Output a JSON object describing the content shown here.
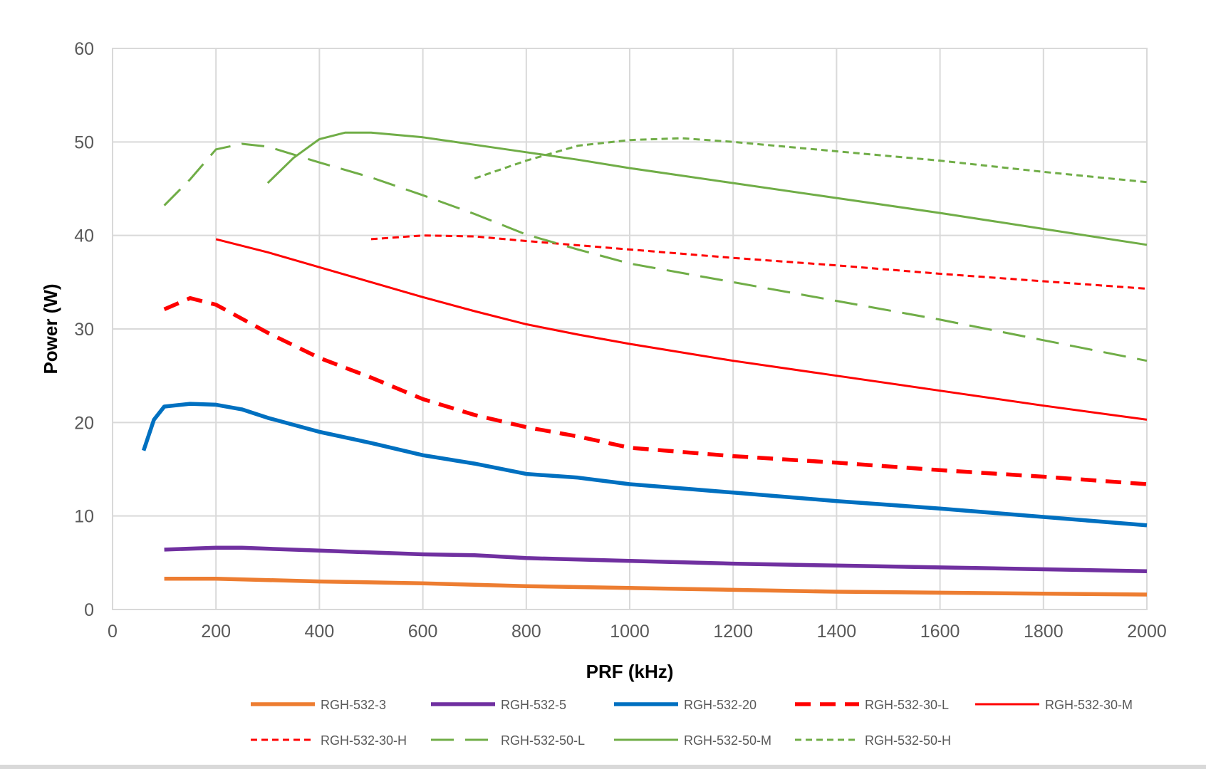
{
  "chart_data": {
    "type": "line",
    "title": "",
    "xlabel": "PRF (kHz)",
    "ylabel": "Power (W)",
    "xlim": [
      0,
      2000
    ],
    "ylim": [
      0,
      60
    ],
    "x_ticks": [
      0,
      200,
      400,
      600,
      800,
      1000,
      1200,
      1400,
      1600,
      1800,
      2000
    ],
    "y_ticks": [
      0,
      10,
      20,
      30,
      40,
      50,
      60
    ],
    "grid": true,
    "legend_position": "bottom",
    "series": [
      {
        "name": "RGH-532-3",
        "color": "#ED7D31",
        "style": "solid",
        "weight": "bold",
        "points": [
          [
            100,
            3.3
          ],
          [
            200,
            3.3
          ],
          [
            400,
            3.0
          ],
          [
            600,
            2.8
          ],
          [
            800,
            2.5
          ],
          [
            1000,
            2.3
          ],
          [
            1200,
            2.1
          ],
          [
            1400,
            1.9
          ],
          [
            1600,
            1.8
          ],
          [
            1800,
            1.7
          ],
          [
            2000,
            1.6
          ]
        ]
      },
      {
        "name": "RGH-532-5",
        "color": "#7030A0",
        "style": "solid",
        "weight": "bold",
        "points": [
          [
            100,
            6.4
          ],
          [
            200,
            6.6
          ],
          [
            250,
            6.6
          ],
          [
            400,
            6.3
          ],
          [
            600,
            5.9
          ],
          [
            700,
            5.8
          ],
          [
            800,
            5.5
          ],
          [
            1000,
            5.2
          ],
          [
            1200,
            4.9
          ],
          [
            1400,
            4.7
          ],
          [
            1600,
            4.5
          ],
          [
            1800,
            4.3
          ],
          [
            2000,
            4.1
          ]
        ]
      },
      {
        "name": "RGH-532-20",
        "color": "#0070C0",
        "style": "solid",
        "weight": "bold",
        "points": [
          [
            60,
            17
          ],
          [
            80,
            20.3
          ],
          [
            100,
            21.7
          ],
          [
            150,
            22.0
          ],
          [
            200,
            21.9
          ],
          [
            250,
            21.4
          ],
          [
            300,
            20.5
          ],
          [
            400,
            19.0
          ],
          [
            500,
            17.8
          ],
          [
            600,
            16.5
          ],
          [
            700,
            15.6
          ],
          [
            800,
            14.5
          ],
          [
            900,
            14.1
          ],
          [
            1000,
            13.4
          ],
          [
            1200,
            12.5
          ],
          [
            1400,
            11.6
          ],
          [
            1600,
            10.8
          ],
          [
            1800,
            9.9
          ],
          [
            2000,
            9.0
          ]
        ]
      },
      {
        "name": "RGH-532-30-L",
        "color": "#FF0000",
        "style": "dash",
        "weight": "bold",
        "points": [
          [
            100,
            32.1
          ],
          [
            150,
            33.3
          ],
          [
            200,
            32.6
          ],
          [
            300,
            29.6
          ],
          [
            400,
            26.9
          ],
          [
            500,
            24.8
          ],
          [
            600,
            22.5
          ],
          [
            700,
            20.8
          ],
          [
            800,
            19.5
          ],
          [
            900,
            18.5
          ],
          [
            1000,
            17.3
          ],
          [
            1200,
            16.4
          ],
          [
            1400,
            15.7
          ],
          [
            1600,
            14.9
          ],
          [
            1800,
            14.2
          ],
          [
            2000,
            13.4
          ]
        ]
      },
      {
        "name": "RGH-532-30-M",
        "color": "#FF0000",
        "style": "solid",
        "weight": "normal",
        "points": [
          [
            200,
            39.6
          ],
          [
            300,
            38.2
          ],
          [
            400,
            36.6
          ],
          [
            500,
            35.0
          ],
          [
            600,
            33.4
          ],
          [
            700,
            31.9
          ],
          [
            800,
            30.5
          ],
          [
            900,
            29.4
          ],
          [
            1000,
            28.4
          ],
          [
            1200,
            26.6
          ],
          [
            1400,
            25.0
          ],
          [
            1600,
            23.4
          ],
          [
            1800,
            21.8
          ],
          [
            2000,
            20.3
          ]
        ]
      },
      {
        "name": "RGH-532-30-H",
        "color": "#FF0000",
        "style": "dot",
        "weight": "normal",
        "points": [
          [
            500,
            39.6
          ],
          [
            600,
            40.0
          ],
          [
            700,
            39.9
          ],
          [
            800,
            39.4
          ],
          [
            1000,
            38.5
          ],
          [
            1200,
            37.6
          ],
          [
            1400,
            36.8
          ],
          [
            1600,
            35.9
          ],
          [
            1800,
            35.1
          ],
          [
            2000,
            34.3
          ]
        ]
      },
      {
        "name": "RGH-532-50-L",
        "color": "#70AD47",
        "style": "longdash",
        "weight": "normal",
        "points": [
          [
            100,
            43.2
          ],
          [
            150,
            46.0
          ],
          [
            200,
            49.2
          ],
          [
            250,
            49.8
          ],
          [
            300,
            49.5
          ],
          [
            400,
            47.8
          ],
          [
            500,
            46.2
          ],
          [
            600,
            44.3
          ],
          [
            700,
            42.3
          ],
          [
            800,
            40.1
          ],
          [
            900,
            38.5
          ],
          [
            1000,
            37.0
          ],
          [
            1200,
            35.0
          ],
          [
            1400,
            33.0
          ],
          [
            1600,
            31.0
          ],
          [
            1800,
            28.8
          ],
          [
            2000,
            26.6
          ]
        ]
      },
      {
        "name": "RGH-532-50-M",
        "color": "#70AD47",
        "style": "solid",
        "weight": "normal",
        "points": [
          [
            300,
            45.6
          ],
          [
            350,
            48.3
          ],
          [
            400,
            50.3
          ],
          [
            450,
            51.0
          ],
          [
            500,
            51.0
          ],
          [
            600,
            50.5
          ],
          [
            700,
            49.7
          ],
          [
            800,
            48.9
          ],
          [
            900,
            48.1
          ],
          [
            1000,
            47.2
          ],
          [
            1200,
            45.6
          ],
          [
            1400,
            44.0
          ],
          [
            1600,
            42.4
          ],
          [
            1800,
            40.7
          ],
          [
            2000,
            39.0
          ]
        ]
      },
      {
        "name": "RGH-532-50-H",
        "color": "#70AD47",
        "style": "dot",
        "weight": "normal",
        "points": [
          [
            700,
            46.1
          ],
          [
            800,
            48.0
          ],
          [
            900,
            49.6
          ],
          [
            1000,
            50.2
          ],
          [
            1100,
            50.4
          ],
          [
            1200,
            50.0
          ],
          [
            1400,
            49.0
          ],
          [
            1600,
            48.0
          ],
          [
            1800,
            46.8
          ],
          [
            2000,
            45.7
          ]
        ]
      }
    ]
  }
}
